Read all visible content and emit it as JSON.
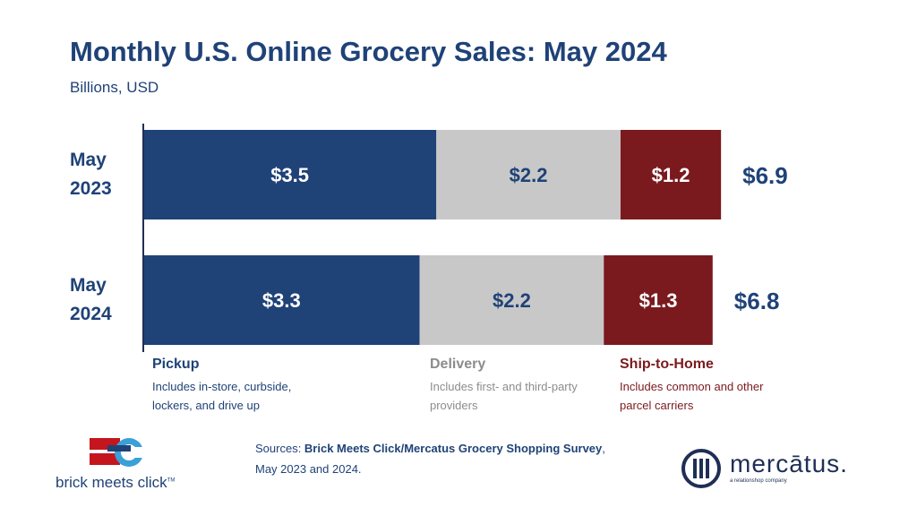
{
  "header": {
    "title": "Monthly U.S. Online Grocery Sales: May 2024",
    "subtitle": "Billions, USD"
  },
  "chart_data": {
    "type": "bar",
    "orientation": "horizontal",
    "stacked": true,
    "title": "Monthly U.S. Online Grocery Sales: May 2024",
    "subtitle": "Billions, USD",
    "categories": [
      "May 2023",
      "May 2024"
    ],
    "category_lines": [
      [
        "May",
        "2023"
      ],
      [
        "May",
        "2024"
      ]
    ],
    "series": [
      {
        "name": "Pickup",
        "values": [
          3.5,
          3.3
        ],
        "labels": [
          "$3.5",
          "$3.3"
        ],
        "color": "#1f4277",
        "label_color": "#ffffff"
      },
      {
        "name": "Delivery",
        "values": [
          2.2,
          2.2
        ],
        "labels": [
          "$2.2",
          "$2.2"
        ],
        "color": "#c8c8c8",
        "label_color": "#1f4277"
      },
      {
        "name": "Ship-to-Home",
        "values": [
          1.2,
          1.3
        ],
        "labels": [
          "$1.2",
          "$1.3"
        ],
        "color": "#7a1a1e",
        "label_color": "#ffffff"
      }
    ],
    "totals": [
      6.9,
      6.8
    ],
    "total_labels": [
      "$6.9",
      "$6.8"
    ],
    "grid": false
  },
  "legend": [
    {
      "name": "Pickup",
      "desc": "Includes in-store, curbside, lockers, and drive up",
      "color": "#1f4277",
      "desc_color": "#1f4277"
    },
    {
      "name": "Delivery",
      "desc": "Includes first- and third-party providers",
      "color": "#8c8c8c",
      "desc_color": "#8c8c8c"
    },
    {
      "name": "Ship-to-Home",
      "desc": "Includes common and other parcel carriers",
      "color": "#7a1a1e",
      "desc_color": "#7a1a1e"
    }
  ],
  "footer": {
    "sources_prefix": "Sources: ",
    "sources_name": "Brick Meets Click/Mercatus Grocery Shopping Survey",
    "sources_suffix": ",",
    "sources_line2": "May 2023 and 2024.",
    "bmc_logo_text": "brick meets click",
    "bmc_logo_tm": "TM",
    "mercatus_logo_text": "mercātus.",
    "mercatus_tagline": "a relationshop company"
  }
}
